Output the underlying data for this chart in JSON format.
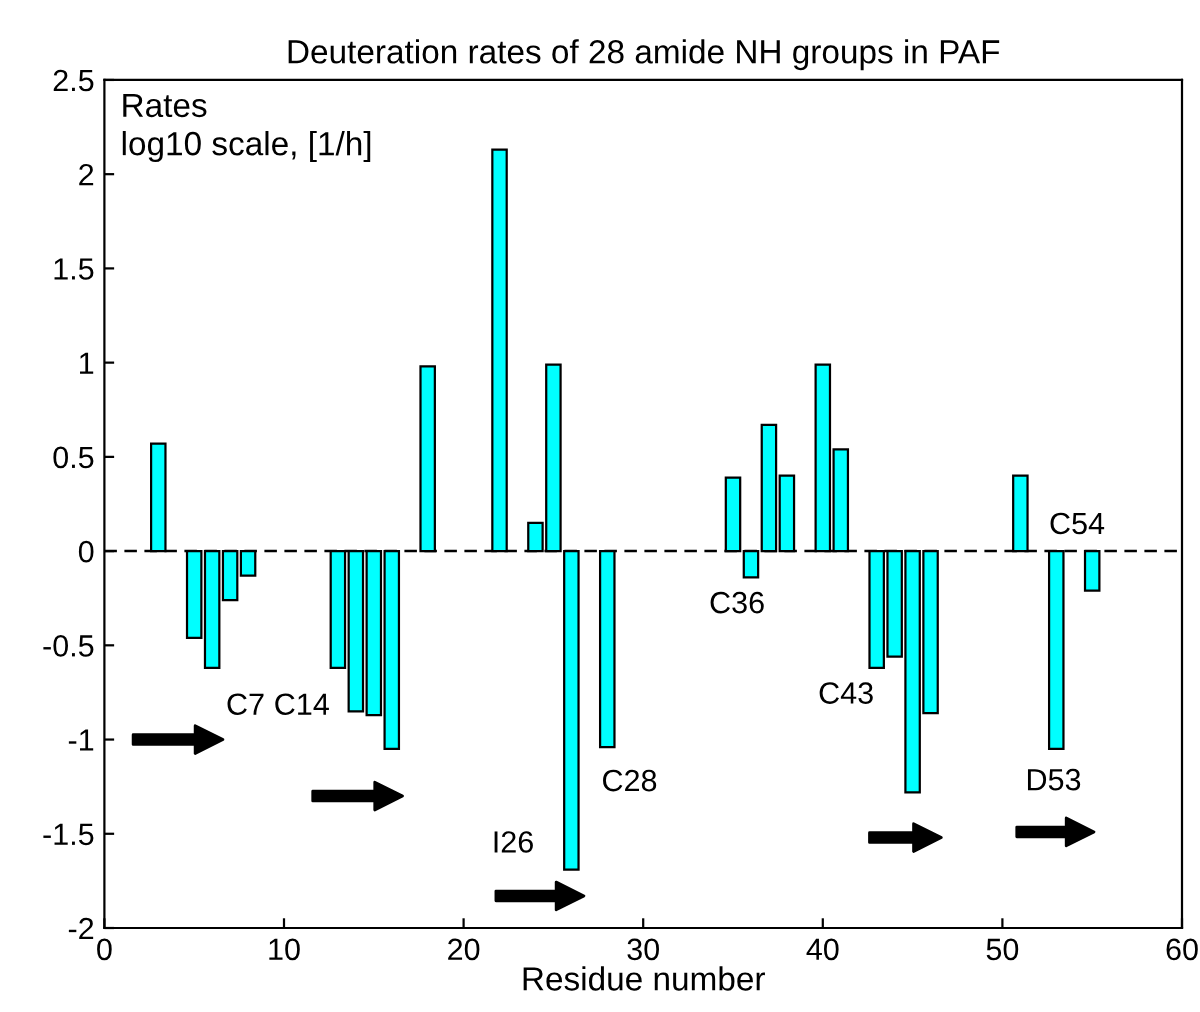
{
  "chart_data": {
    "type": "bar",
    "title": "Deuteration rates of 28 amide NH groups in PAF",
    "xlabel": "Residue number",
    "x": [
      3,
      5,
      6,
      7,
      8,
      13,
      14,
      15,
      16,
      18,
      22,
      24,
      25,
      26,
      28,
      35,
      36,
      37,
      38,
      40,
      41,
      43,
      44,
      45,
      46,
      51,
      53,
      55
    ],
    "values": [
      0.57,
      -0.46,
      -0.62,
      -0.26,
      -0.13,
      -0.62,
      -0.85,
      -0.87,
      -1.05,
      0.98,
      2.13,
      0.15,
      0.99,
      -1.69,
      -1.04,
      0.39,
      -0.14,
      0.67,
      0.4,
      0.99,
      0.54,
      -0.62,
      -0.56,
      -1.28,
      -0.86,
      0.4,
      -1.05,
      -0.21
    ],
    "color": "#00ffff",
    "xlim": [
      0,
      60
    ],
    "xticks": [
      0,
      10,
      20,
      30,
      40,
      50,
      60
    ],
    "ylim": [
      -2,
      2.5
    ],
    "yticks": [
      -2,
      -1.5,
      -1,
      -0.5,
      0,
      0.5,
      1,
      1.5,
      2,
      2.5
    ],
    "ref_lines": [
      {
        "axis": "y",
        "value": 0,
        "color": "#000000",
        "line_style": "dashed"
      }
    ],
    "annotations": [
      "Rates\nlog10 scale, [1/h]",
      {
        "text": "C7",
        "x": 6,
        "y": -0.62
      },
      {
        "text": "C14",
        "x": 13,
        "y": -0.62
      },
      {
        "text": "I26",
        "x": 26,
        "y": -1.69
      },
      {
        "text": "C28",
        "x": 28,
        "y": -1.04
      },
      {
        "text": "C36",
        "x": 36,
        "y": -0.14
      },
      {
        "text": "C43",
        "x": 43,
        "y": -0.62
      },
      {
        "text": "D53",
        "x": 53,
        "y": -1.05
      },
      {
        "text": "C54",
        "x": 54,
        "y": 0
      }
    ],
    "grid": false
  }
}
